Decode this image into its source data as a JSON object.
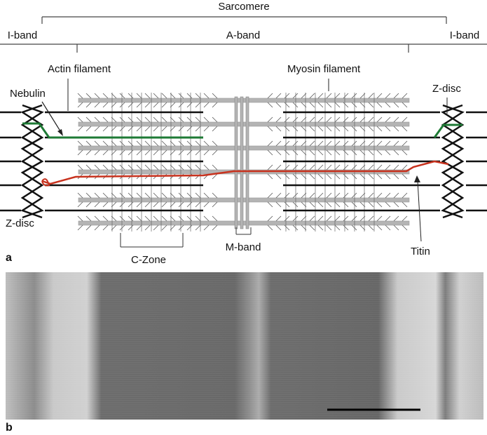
{
  "labels": {
    "sarcomere": "Sarcomere",
    "i_band_left": "I-band",
    "a_band": "A-band",
    "i_band_right": "I-band",
    "actin_filament": "Actin filament",
    "myosin_filament": "Myosin filament",
    "nebulin": "Nebulin",
    "z_disc_right": "Z-disc",
    "z_disc_left": "Z-disc",
    "c_zone": "C-Zone",
    "m_band": "M-band",
    "titin": "Titin"
  },
  "panels": {
    "a": "a",
    "b": "b"
  },
  "colors": {
    "nebulin": "#1e7a35",
    "titin": "#c8321e",
    "actin": "#111111",
    "myosin": "#b4b4b4",
    "micrograph_dark": "#5f5f5f",
    "micrograph_light": "#cfcfcf"
  },
  "micrograph": {
    "alt": "electron micrograph of a sarcomere"
  }
}
